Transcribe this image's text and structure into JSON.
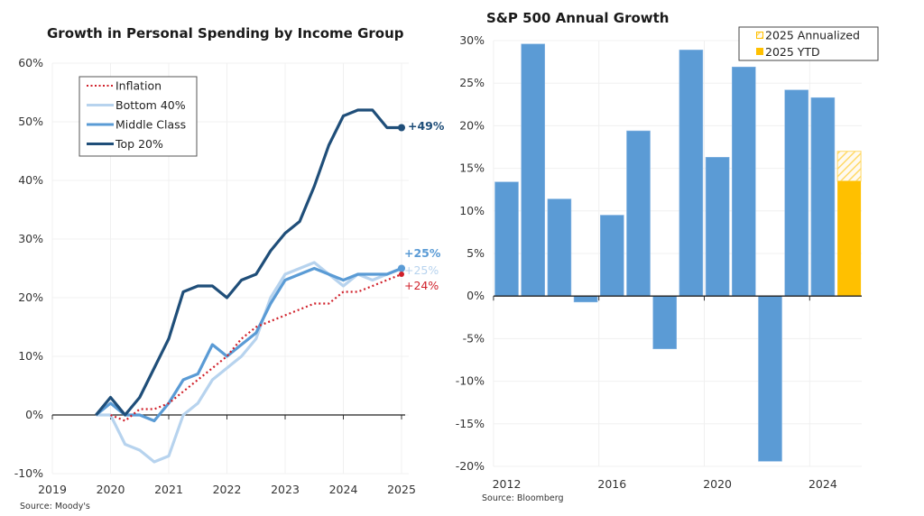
{
  "chart_data": [
    {
      "type": "line",
      "title": "Growth in Personal Spending by Income Group",
      "source": "Source: Moody's",
      "xlabel": "",
      "ylabel": "",
      "xlim": [
        2019,
        2025
      ],
      "ylim": [
        -10,
        60
      ],
      "x_ticks": [
        2019,
        2020,
        2021,
        2022,
        2023,
        2024,
        2025
      ],
      "x_tick_labels": [
        "2019",
        "2020",
        "2021",
        "2022",
        "2023",
        "2024",
        "2025"
      ],
      "y_ticks": [
        -10,
        0,
        10,
        20,
        30,
        40,
        50,
        60
      ],
      "y_tick_labels": [
        "-10%",
        "0%",
        "10%",
        "20%",
        "30%",
        "40%",
        "50%",
        "60%"
      ],
      "grid": true,
      "legend_position": "top-left",
      "series": [
        {
          "name": "Inflation",
          "color": "#d0202a",
          "style": "dotted",
          "x": [
            2020.0,
            2020.25,
            2020.5,
            2020.75,
            2021.0,
            2021.25,
            2021.5,
            2021.75,
            2022.0,
            2022.25,
            2022.5,
            2022.75,
            2023.0,
            2023.25,
            2023.5,
            2023.75,
            2024.0,
            2024.25,
            2024.5,
            2024.75,
            2025.0
          ],
          "values": [
            0,
            -1,
            1,
            1,
            2,
            4,
            6,
            8,
            10,
            13,
            15,
            16,
            17,
            18,
            19,
            19,
            21,
            21,
            22,
            23,
            24
          ],
          "end_label": "+24%"
        },
        {
          "name": "Bottom 40%",
          "color": "#b7d3ee",
          "style": "solid",
          "x": [
            2019.75,
            2020.0,
            2020.25,
            2020.5,
            2020.75,
            2021.0,
            2021.25,
            2021.5,
            2021.75,
            2022.0,
            2022.25,
            2022.5,
            2022.75,
            2023.0,
            2023.25,
            2023.5,
            2023.75,
            2024.0,
            2024.25,
            2024.5,
            2024.75,
            2025.0
          ],
          "values": [
            0,
            0,
            -5,
            -6,
            -8,
            -7,
            0,
            2,
            6,
            8,
            10,
            13,
            20,
            24,
            25,
            26,
            24,
            22,
            24,
            23,
            24,
            25
          ],
          "end_label": "+25%"
        },
        {
          "name": "Middle Class",
          "color": "#5a9bd5",
          "style": "solid",
          "x": [
            2019.75,
            2020.0,
            2020.25,
            2020.5,
            2020.75,
            2021.0,
            2021.25,
            2021.5,
            2021.75,
            2022.0,
            2022.25,
            2022.5,
            2022.75,
            2023.0,
            2023.25,
            2023.5,
            2023.75,
            2024.0,
            2024.25,
            2024.5,
            2024.75,
            2025.0
          ],
          "values": [
            0,
            2,
            0,
            0,
            -1,
            2,
            6,
            7,
            12,
            10,
            12,
            14,
            19,
            23,
            24,
            25,
            24,
            23,
            24,
            24,
            24,
            25
          ],
          "end_label": "+25%"
        },
        {
          "name": "Top 20%",
          "color": "#1f4e79",
          "style": "solid",
          "x": [
            2019.75,
            2020.0,
            2020.25,
            2020.5,
            2020.75,
            2021.0,
            2021.25,
            2021.5,
            2021.75,
            2022.0,
            2022.25,
            2022.5,
            2022.75,
            2023.0,
            2023.25,
            2023.5,
            2023.75,
            2024.0,
            2024.25,
            2024.5,
            2024.75,
            2025.0
          ],
          "values": [
            0,
            3,
            0,
            3,
            8,
            13,
            21,
            22,
            22,
            20,
            23,
            24,
            28,
            31,
            33,
            39,
            46,
            51,
            52,
            52,
            49,
            49
          ],
          "end_label": "+49%"
        }
      ]
    },
    {
      "type": "bar",
      "title": "S&P 500 Annual Growth",
      "source": "Source: Bloomberg",
      "xlabel": "",
      "ylabel": "",
      "categories": [
        "2012",
        "2013",
        "2014",
        "2015",
        "2016",
        "2017",
        "2018",
        "2019",
        "2020",
        "2021",
        "2022",
        "2023",
        "2024",
        "2025"
      ],
      "values": [
        13.4,
        29.6,
        11.4,
        -0.7,
        9.5,
        19.4,
        -6.2,
        28.9,
        16.3,
        26.9,
        -19.4,
        24.2,
        23.3,
        13.5
      ],
      "annualized_2025": 17.0,
      "ylim": [
        -20,
        30
      ],
      "x_tick_labels": [
        "2012",
        "2016",
        "2020",
        "2024"
      ],
      "y_ticks": [
        -20,
        -15,
        -10,
        -5,
        0,
        5,
        10,
        15,
        20,
        25,
        30
      ],
      "y_tick_labels": [
        "-20%",
        "-15%",
        "-10%",
        "-5%",
        "0%",
        "5%",
        "10%",
        "15%",
        "20%",
        "25%",
        "30%"
      ],
      "grid": true,
      "legend_position": "top-right",
      "legend": [
        {
          "name": "2025 Annualized",
          "style": "hatched",
          "color": "#ffc000"
        },
        {
          "name": "2025 YTD",
          "style": "solid",
          "color": "#ffc000"
        }
      ],
      "bar_color": "#5b9bd5",
      "highlight_color": "#ffc000"
    }
  ]
}
